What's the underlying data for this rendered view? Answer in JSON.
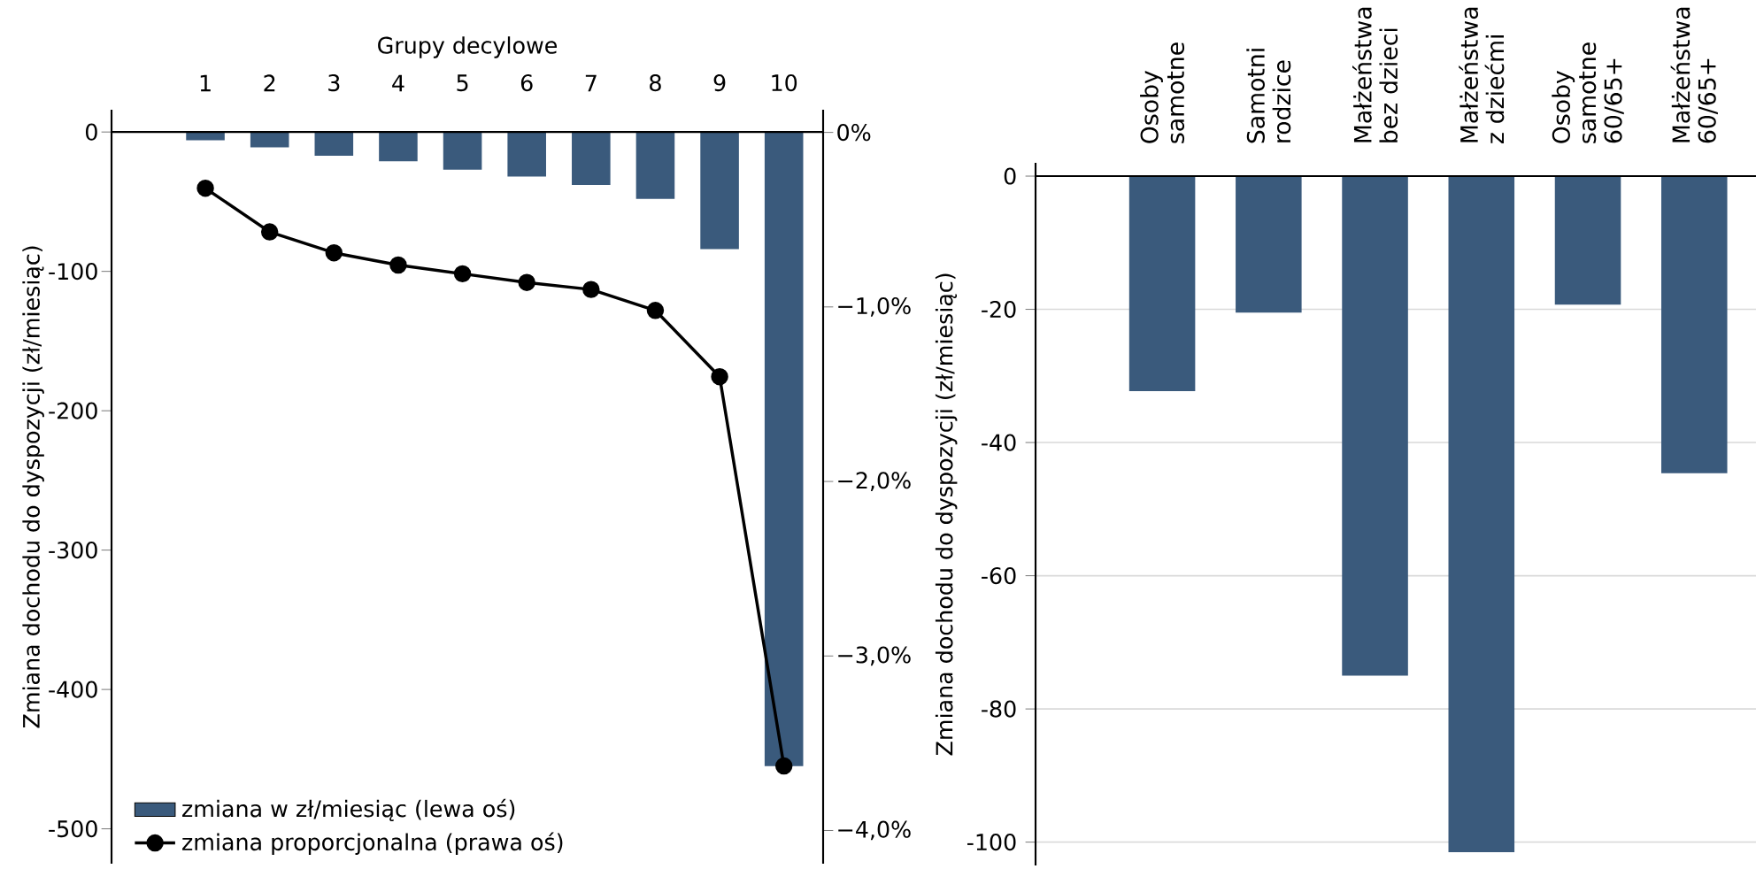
{
  "chart_data": [
    {
      "type": "bar",
      "xlabel": "Grupy decylowe",
      "ylabel": "Zmiana dochodu do dyspozycji (zł/miesiąc)",
      "categories": [
        "1",
        "2",
        "3",
        "4",
        "5",
        "6",
        "7",
        "8",
        "9",
        "10"
      ],
      "ylim": [
        -525,
        16
      ],
      "yticks": [
        0,
        -100,
        -200,
        -300,
        -400,
        -500
      ],
      "y2lim": [
        -4.19,
        0.13
      ],
      "y2ticks": [
        {
          "value": 0,
          "label": "0%"
        },
        {
          "value": -1,
          "label": "−1,0%"
        },
        {
          "value": -2,
          "label": "−2,0%"
        },
        {
          "value": -3,
          "label": "−3,0%"
        },
        {
          "value": -4,
          "label": "−4,0%"
        }
      ],
      "legend": "bottom left",
      "grid": false,
      "series": [
        {
          "name": "zmiana w zł/miesiąc (lewa oś)",
          "type": "bar",
          "color": "#3a5a7c",
          "values": [
            -6,
            -11,
            -17,
            -21,
            -27,
            -32,
            -38,
            -48,
            -84,
            -455
          ]
        },
        {
          "name": "zmiana proporcjonalna (prawa oś)",
          "type": "line",
          "axis": "y2",
          "color": "#000000",
          "marker": "circle",
          "line_style": "solid",
          "values": [
            -0.32,
            -0.57,
            -0.69,
            -0.76,
            -0.81,
            -0.86,
            -0.9,
            -1.02,
            -1.4,
            -3.63
          ]
        }
      ]
    },
    {
      "type": "bar",
      "ylabel": "Zmiana dochodu do dyspozycji (zł/miesiąc)",
      "categories": [
        "Osoby samotne",
        "Samotni rodzice",
        "Małżeństwa bez dzieci",
        "Małżeństwa z dziećmi",
        "Osoby samotne 60/65+",
        "Małżeństwa 60/65+"
      ],
      "values": [
        -32.3,
        -20.5,
        -75,
        -101.5,
        -19.3,
        -44.6
      ],
      "color": "#3a5a7c",
      "ylim": [
        -103.5,
        2
      ],
      "yticks": [
        0,
        -20,
        -40,
        -60,
        -80,
        -100
      ],
      "grid": "y"
    }
  ]
}
